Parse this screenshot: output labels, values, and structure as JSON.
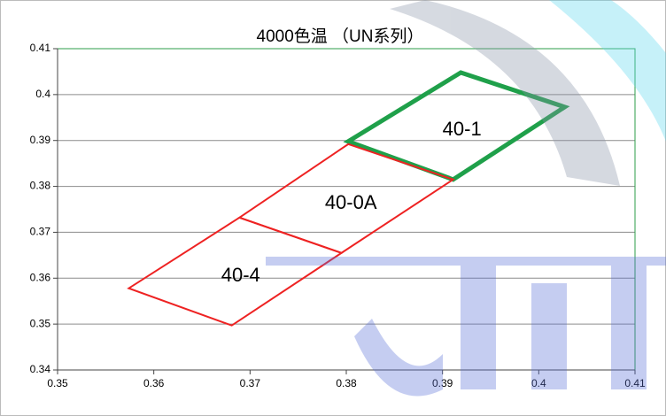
{
  "chart_data": {
    "type": "scatter",
    "title": "4000色温 （UN系列）",
    "xlim": [
      0.35,
      0.41
    ],
    "xticks": [
      0.35,
      0.36,
      0.37,
      0.38,
      0.39,
      0.4,
      0.41
    ],
    "ylim": [
      0.34,
      0.41
    ],
    "yticks": [
      0.34,
      0.35,
      0.36,
      0.37,
      0.38,
      0.39,
      0.4,
      0.41
    ],
    "grid": true,
    "series": [
      {
        "name": "40-1",
        "color": "#1fa04a",
        "x": [
          0.3802,
          0.3919,
          0.4027,
          0.3911
        ],
        "values": [
          0.3898,
          0.4048,
          0.3973,
          0.3815
        ]
      },
      {
        "name": "40-0A",
        "color": "#ee2222",
        "x": [
          0.3802,
          0.3911,
          0.3795,
          0.3689
        ],
        "values": [
          0.3892,
          0.3815,
          0.3655,
          0.3732
        ]
      },
      {
        "name": "40-4",
        "color": "#ee2222",
        "x": [
          0.3689,
          0.3795,
          0.3681,
          0.3574
        ],
        "values": [
          0.3732,
          0.3655,
          0.3497,
          0.3578
        ]
      }
    ]
  }
}
